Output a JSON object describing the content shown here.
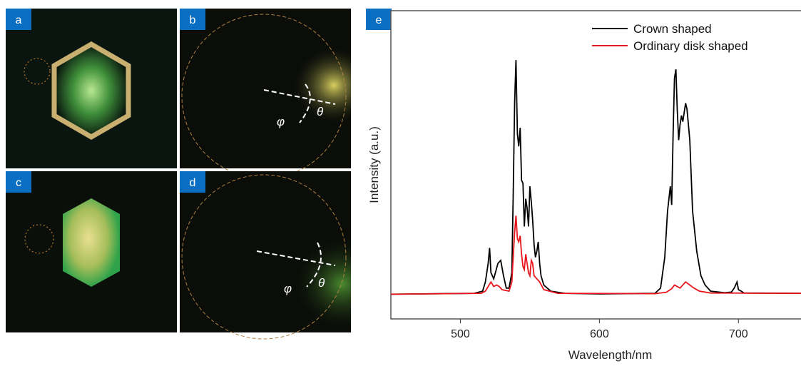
{
  "panels": [
    {
      "label": "a"
    },
    {
      "label": "b",
      "annotations": [
        "φ",
        "θ"
      ]
    },
    {
      "label": "c"
    },
    {
      "label": "d",
      "annotations": [
        "φ",
        "θ"
      ]
    }
  ],
  "chart_data": {
    "type": "line",
    "panel_label": "e",
    "x_label": "Wavelength/nm",
    "y_label": "Intensity (a.u.)",
    "xlim": [
      450,
      745
    ],
    "ylim": [
      0,
      100
    ],
    "xticks": [
      500,
      600,
      700
    ],
    "legend": "upper-right",
    "series": [
      {
        "name": "Crown shaped",
        "color": "#000000",
        "x": [
          450,
          510,
          516,
          518,
          520,
          521,
          522,
          524,
          527,
          529,
          531,
          533,
          535,
          537,
          538,
          539,
          540,
          541,
          542,
          543,
          544,
          545,
          546,
          547,
          548,
          549,
          550,
          551,
          552,
          553,
          554,
          555,
          556,
          557,
          558,
          560,
          565,
          575,
          600,
          640,
          644,
          647,
          649,
          651,
          652,
          653,
          654,
          655,
          656,
          657,
          658,
          659,
          660,
          662,
          663,
          665,
          667,
          670,
          673,
          676,
          680,
          690,
          695,
          697,
          698,
          699,
          700,
          702,
          704,
          745
        ],
        "values": [
          8,
          8.3,
          9,
          12,
          18,
          23,
          15,
          13,
          18,
          19,
          14,
          10,
          10,
          15,
          40,
          70,
          84,
          60,
          56,
          62,
          45,
          44,
          30,
          39,
          36,
          30,
          43,
          38,
          32,
          24,
          20,
          22,
          25,
          18,
          14,
          11,
          9,
          8.3,
          8.1,
          8.3,
          10,
          20,
          35,
          43,
          37,
          60,
          78,
          81,
          68,
          58,
          63,
          66,
          64,
          70,
          68,
          58,
          35,
          22,
          14,
          11,
          9,
          8.5,
          8.7,
          10,
          11,
          12,
          9.5,
          9,
          8.4,
          8.3
        ]
      },
      {
        "name": "Ordinary disk shaped",
        "color": "#e8141b",
        "x": [
          450,
          515,
          518,
          520,
          522,
          524,
          526,
          528,
          530,
          535,
          537,
          538,
          539,
          540,
          541,
          542,
          543,
          544,
          545,
          546,
          547,
          548,
          549,
          550,
          551,
          552,
          553,
          555,
          557,
          560,
          570,
          640,
          648,
          652,
          654,
          656,
          658,
          662,
          665,
          668,
          672,
          680,
          745
        ],
        "values": [
          8,
          8.3,
          9,
          10.5,
          12,
          10.5,
          11,
          10.5,
          9.5,
          9,
          12,
          20,
          28,
          33.5,
          26,
          25,
          27,
          21,
          17,
          16,
          21,
          18,
          15,
          14,
          19,
          18,
          14,
          13,
          12,
          9.5,
          8.3,
          8.2,
          8.6,
          9.8,
          11,
          10.5,
          10,
          12,
          11,
          10,
          9,
          8.4,
          8.3
        ]
      }
    ]
  }
}
